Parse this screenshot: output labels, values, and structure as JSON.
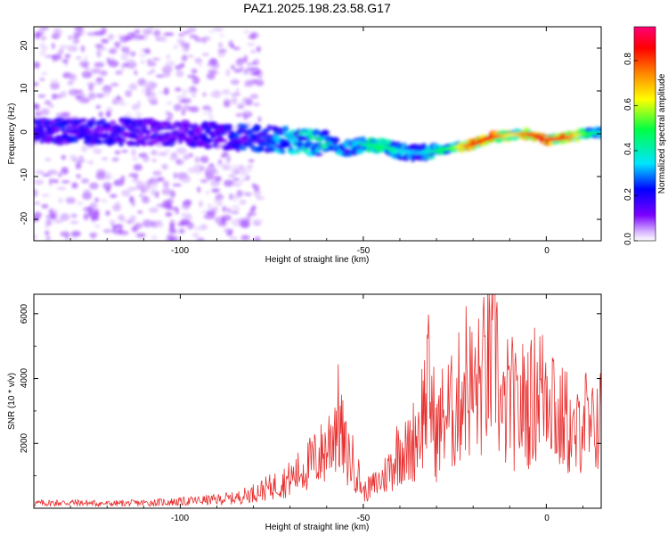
{
  "title": "PAZ1.2025.198.23.58.G17",
  "chart_data": [
    {
      "type": "heatmap",
      "xlabel": "Height of straight line (km)",
      "ylabel": "Frequency (Hz)",
      "xlim": [
        -140,
        15
      ],
      "ylim": [
        -25,
        25
      ],
      "xticks": [
        "-100",
        "-50",
        "0"
      ],
      "yticks": [
        "-20",
        "-10",
        "0",
        "10",
        "20"
      ],
      "colorbar": {
        "label": "Normalized spectral amplitude",
        "range": [
          0,
          0.95
        ],
        "ticks": [
          "0.0",
          "0.2",
          "0.4",
          "0.6",
          "0.8"
        ],
        "colormap": [
          "#ffffff",
          "#7b00ff",
          "#0000ff",
          "#00e5ff",
          "#00ff44",
          "#ffff00",
          "#ff8800",
          "#ff0000",
          "#ff0077"
        ]
      },
      "ridge": {
        "x": [
          -140,
          -120,
          -100,
          -90,
          -80,
          -70,
          -65,
          -60,
          -55,
          -50,
          -45,
          -40,
          -35,
          -30,
          -25,
          -20,
          -15,
          -10,
          -5,
          0,
          5,
          10,
          15
        ],
        "freq": [
          0.5,
          0.5,
          0.3,
          -0.5,
          -1,
          -1.5,
          -1.8,
          -2.5,
          -3.5,
          -2.5,
          -3,
          -4,
          -4.5,
          -4,
          -3.2,
          -2.5,
          -0.8,
          -0.3,
          0,
          -1.5,
          -1,
          0,
          0.3
        ],
        "amp": [
          0.25,
          0.25,
          0.2,
          0.25,
          0.3,
          0.4,
          0.45,
          0.45,
          0.35,
          0.45,
          0.5,
          0.4,
          0.35,
          0.45,
          0.55,
          0.85,
          0.9,
          0.6,
          0.8,
          0.9,
          0.85,
          0.55,
          0.4
        ]
      }
    },
    {
      "type": "line",
      "xlabel": "Height of straight line (km)",
      "ylabel": "SNR (10 * v/v)",
      "xlim": [
        -140,
        15
      ],
      "ylim": [
        0,
        6600
      ],
      "xticks": [
        "-100",
        "-50",
        "0"
      ],
      "yticks": [
        "2000",
        "4000",
        "6000"
      ],
      "color": "#e83030",
      "series": [
        {
          "x": [
            -140,
            -130,
            -120,
            -110,
            -100,
            -90,
            -85,
            -80,
            -75,
            -70,
            -65,
            -60,
            -57,
            -55,
            -52,
            -50,
            -45,
            -42,
            -40,
            -38,
            -35,
            -32,
            -30,
            -28,
            -25,
            -22,
            -20,
            -18,
            -16,
            -14,
            -13.5,
            -13,
            -12,
            -10,
            -8,
            -6,
            -4,
            -3,
            -2,
            -1,
            0,
            1,
            2,
            3,
            5,
            8,
            10,
            12,
            14,
            15
          ],
          "y": [
            150,
            170,
            140,
            160,
            200,
            260,
            330,
            500,
            700,
            950,
            1400,
            1900,
            2900,
            1800,
            1300,
            500,
            900,
            1400,
            2000,
            1700,
            2500,
            3900,
            2200,
            3000,
            3000,
            4200,
            3600,
            3900,
            4500,
            4700,
            6600,
            3600,
            2700,
            3600,
            2900,
            3400,
            3300,
            3700,
            4000,
            3600,
            4000,
            4100,
            3700,
            2500,
            2900,
            2000,
            3200,
            2200,
            2900,
            2700
          ]
        }
      ]
    }
  ]
}
